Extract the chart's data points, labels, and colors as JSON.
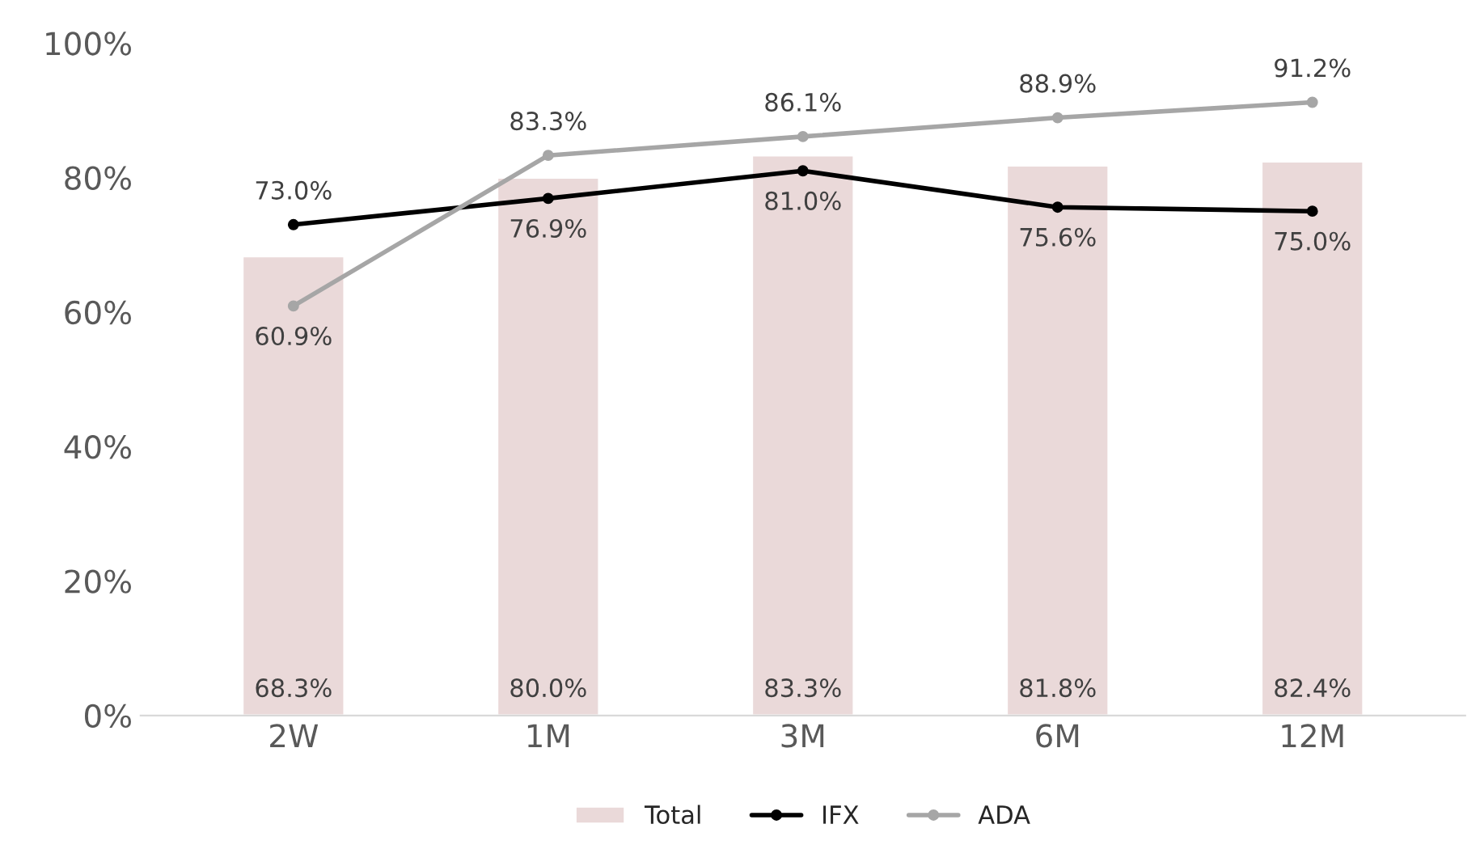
{
  "chart_data": {
    "type": "bar",
    "categories": [
      "2W",
      "1M",
      "3M",
      "6M",
      "12M"
    ],
    "series": [
      {
        "name": "Total",
        "color": "#ead9d9",
        "values": [
          68.3,
          80.0,
          83.3,
          81.8,
          82.4
        ],
        "value_labels": [
          "68.3%",
          "80.0%",
          "83.3%",
          "81.8%",
          "82.4%"
        ]
      },
      {
        "name": "IFX",
        "type": "line",
        "color": "#000000",
        "values": [
          73.0,
          76.9,
          81.0,
          75.6,
          75.0
        ],
        "value_labels": [
          "73.0%",
          "76.9%",
          "81.0%",
          "75.6%",
          "75.0%"
        ]
      },
      {
        "name": "ADA",
        "type": "line",
        "color": "#a6a6a6",
        "values": [
          60.9,
          83.3,
          86.1,
          88.9,
          91.2
        ],
        "value_labels": [
          "60.9%",
          "83.3%",
          "86.1%",
          "88.9%",
          "91.2%"
        ]
      }
    ],
    "ylim": [
      0,
      100
    ],
    "yticks": [
      {
        "value": 0,
        "label": "0%"
      },
      {
        "value": 20,
        "label": "20%"
      },
      {
        "value": 40,
        "label": "40%"
      },
      {
        "value": 60,
        "label": "60%"
      },
      {
        "value": 80,
        "label": "80%"
      },
      {
        "value": 100,
        "label": "100%"
      }
    ],
    "grid": false,
    "legend": "bottom",
    "marker": "circle",
    "line_style": "solid"
  }
}
